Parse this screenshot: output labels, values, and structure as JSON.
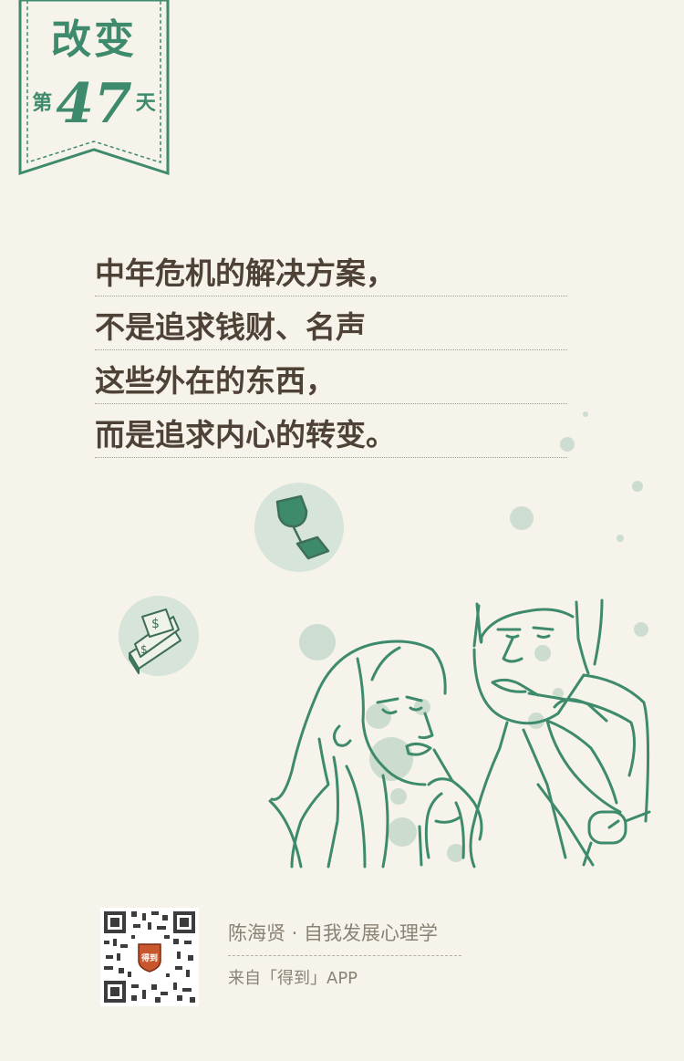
{
  "badge": {
    "title": "改变",
    "day_prefix": "第",
    "day_number": "47",
    "day_suffix": "天"
  },
  "quote": {
    "lines": [
      "中年危机的解决方案，",
      "不是追求钱财、名声",
      "这些外在的东西，",
      "而是追求内心的转变。"
    ]
  },
  "illustration": {
    "icons": [
      "trophy-icon",
      "money-stack-icon"
    ],
    "line_color": "#3e8a6c",
    "bubble_color": "#bfd6c8"
  },
  "footer": {
    "author_course": "陈海贤 · 自我发展心理学",
    "source": "来自「得到」APP",
    "qr_logo_text": "得到"
  },
  "colors": {
    "background": "#f6f3ea",
    "accent": "#3e8a6c",
    "text": "#4e4136",
    "muted": "#8a8274"
  }
}
